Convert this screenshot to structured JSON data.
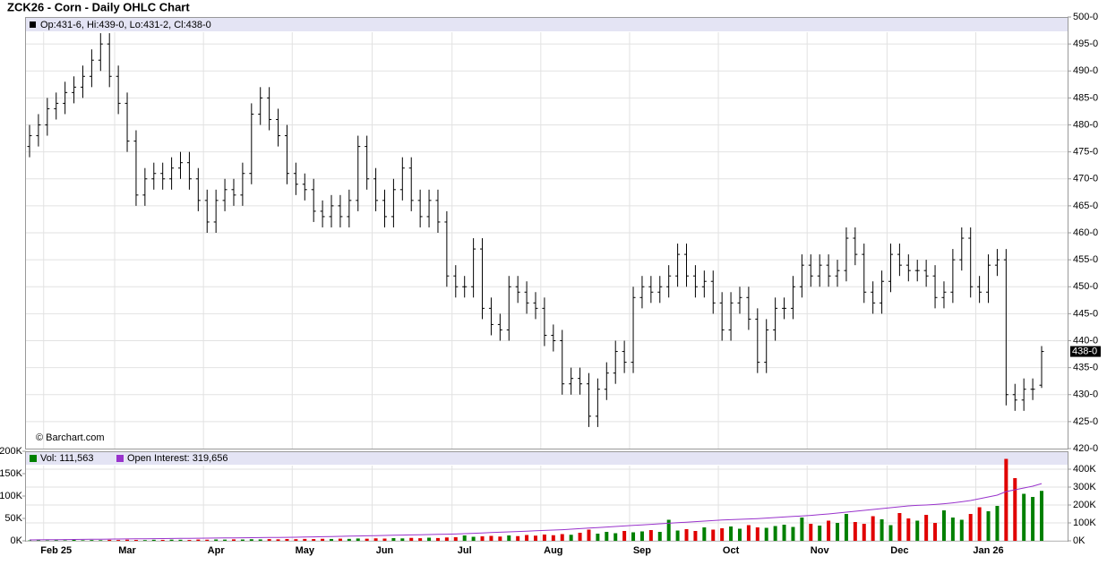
{
  "chart_data": [
    {
      "type": "ohlc",
      "title": "ZCK26 - Corn - Daily OHLC Chart",
      "annotation": "Op:431-6, Hi:439-0, Lo:431-2, Cl:438-0",
      "source": "© Barchart.com",
      "last_label": "438-0",
      "color": "#000000",
      "grid": true,
      "open": [
        476,
        478,
        480,
        483,
        484,
        486,
        487,
        489,
        492,
        495,
        489,
        484,
        477,
        467,
        470,
        471,
        470,
        472,
        473,
        470,
        466,
        462,
        466,
        468,
        467,
        471,
        482,
        485,
        481,
        478,
        471,
        469,
        468,
        464,
        463,
        465,
        463,
        466,
        476,
        470,
        466,
        463,
        468,
        472,
        466,
        463,
        466,
        462,
        452,
        450,
        450,
        457,
        446,
        443,
        442,
        450,
        449,
        447,
        446,
        441,
        440,
        432,
        433,
        432,
        426,
        431,
        434,
        438,
        436,
        448,
        450,
        449,
        450,
        452,
        456,
        452,
        450,
        451,
        447,
        442,
        447,
        448,
        444,
        436,
        442,
        446,
        446,
        450,
        454,
        452,
        454,
        452,
        453,
        459,
        456,
        449,
        447,
        451,
        456,
        454,
        453,
        453,
        452,
        448,
        449,
        455,
        459,
        450,
        449,
        454,
        455,
        430,
        429,
        431,
        431.75
      ],
      "high": [
        480,
        482,
        485,
        486,
        488,
        489,
        491,
        494,
        497,
        497,
        491,
        486,
        479,
        472,
        473,
        473,
        474,
        475,
        475,
        472,
        468,
        468,
        470,
        470,
        473,
        484,
        487,
        487,
        483,
        480,
        473,
        471,
        470,
        466,
        467,
        467,
        468,
        478,
        478,
        472,
        468,
        470,
        474,
        474,
        468,
        468,
        468,
        464,
        454,
        452,
        459,
        459,
        448,
        445,
        452,
        452,
        451,
        449,
        448,
        443,
        442,
        435,
        435,
        434,
        433,
        436,
        440,
        440,
        450,
        452,
        452,
        452,
        454,
        458,
        458,
        454,
        453,
        453,
        449,
        449,
        450,
        450,
        446,
        444,
        448,
        448,
        452,
        456,
        456,
        456,
        456,
        455,
        461,
        461,
        458,
        451,
        453,
        458,
        458,
        456,
        455,
        455,
        454,
        451,
        457,
        461,
        461,
        452,
        456,
        457,
        457,
        432,
        433,
        433,
        439
      ],
      "low": [
        474,
        476,
        478,
        481,
        482,
        484,
        485,
        487,
        490,
        487,
        482,
        475,
        465,
        465,
        468,
        468,
        468,
        470,
        468,
        464,
        460,
        460,
        464,
        465,
        465,
        469,
        480,
        479,
        476,
        469,
        467,
        466,
        462,
        461,
        461,
        461,
        461,
        464,
        468,
        464,
        461,
        461,
        466,
        464,
        461,
        461,
        460,
        450,
        448,
        448,
        448,
        444,
        441,
        440,
        440,
        447,
        445,
        444,
        439,
        438,
        430,
        430,
        430,
        424,
        424,
        429,
        432,
        434,
        434,
        446,
        447,
        447,
        448,
        450,
        450,
        448,
        448,
        445,
        440,
        440,
        445,
        442,
        434,
        434,
        440,
        444,
        444,
        448,
        450,
        450,
        450,
        450,
        451,
        454,
        447,
        445,
        445,
        449,
        452,
        451,
        451,
        450,
        446,
        446,
        447,
        453,
        448,
        447,
        447,
        452,
        428,
        427,
        427,
        429,
        431.25
      ],
      "close": [
        478,
        480,
        483,
        484,
        486,
        487,
        489,
        492,
        495,
        489,
        484,
        477,
        467,
        470,
        471,
        470,
        472,
        473,
        470,
        466,
        462,
        466,
        468,
        467,
        471,
        482,
        485,
        481,
        478,
        471,
        469,
        468,
        464,
        463,
        465,
        463,
        466,
        476,
        470,
        466,
        463,
        468,
        472,
        466,
        463,
        466,
        462,
        452,
        450,
        450,
        457,
        446,
        443,
        442,
        450,
        449,
        447,
        446,
        441,
        440,
        432,
        433,
        432,
        426,
        431,
        434,
        438,
        436,
        448,
        450,
        449,
        450,
        452,
        456,
        452,
        450,
        451,
        447,
        442,
        447,
        448,
        444,
        436,
        442,
        446,
        446,
        450,
        454,
        452,
        454,
        452,
        453,
        459,
        456,
        449,
        447,
        451,
        456,
        454,
        453,
        453,
        452,
        448,
        449,
        455,
        459,
        450,
        449,
        454,
        455,
        430,
        429,
        431,
        431,
        438
      ],
      "ylim": [
        420,
        500
      ],
      "yticks": [
        {
          "value": 420,
          "label": "420-0"
        },
        {
          "value": 425,
          "label": "425-0"
        },
        {
          "value": 430,
          "label": "430-0"
        },
        {
          "value": 435,
          "label": "435-0"
        },
        {
          "value": 440,
          "label": "440-0"
        },
        {
          "value": 445,
          "label": "445-0"
        },
        {
          "value": 450,
          "label": "450-0"
        },
        {
          "value": 455,
          "label": "455-0"
        },
        {
          "value": 460,
          "label": "460-0"
        },
        {
          "value": 465,
          "label": "465-0"
        },
        {
          "value": 470,
          "label": "470-0"
        },
        {
          "value": 475,
          "label": "475-0"
        },
        {
          "value": 480,
          "label": "480-0"
        },
        {
          "value": 485,
          "label": "485-0"
        },
        {
          "value": 490,
          "label": "490-0"
        },
        {
          "value": 495,
          "label": "495-0"
        },
        {
          "value": 500,
          "label": "500-0"
        }
      ]
    },
    {
      "type": "bar",
      "down_color": "#e00000",
      "categories": [
        null,
        null,
        null,
        "Feb 25",
        null,
        null,
        null,
        null,
        null,
        null,
        null,
        "Mar",
        null,
        null,
        null,
        null,
        null,
        null,
        null,
        null,
        null,
        "Apr",
        null,
        null,
        null,
        null,
        null,
        null,
        null,
        null,
        null,
        "May",
        null,
        null,
        null,
        null,
        null,
        null,
        null,
        null,
        "Jun",
        null,
        null,
        null,
        null,
        null,
        null,
        null,
        null,
        "Jul",
        null,
        null,
        null,
        null,
        null,
        null,
        null,
        null,
        null,
        "Aug",
        null,
        null,
        null,
        null,
        null,
        null,
        null,
        null,
        null,
        "Sep",
        null,
        null,
        null,
        null,
        null,
        null,
        null,
        null,
        null,
        "Oct",
        null,
        null,
        null,
        null,
        null,
        null,
        null,
        null,
        null,
        "Nov",
        null,
        null,
        null,
        null,
        null,
        null,
        null,
        null,
        "Dec",
        null,
        null,
        null,
        null,
        null,
        null,
        null,
        null,
        null,
        "Jan 26",
        null,
        null,
        null,
        null,
        null,
        null
      ],
      "series": [
        {
          "name": "Vol: 111,563",
          "color": "#008000",
          "values": [
            800,
            1200,
            900,
            1500,
            1100,
            2000,
            1300,
            1700,
            1400,
            2200,
            1800,
            2500,
            2000,
            1600,
            2300,
            2100,
            2600,
            2400,
            1900,
            2800,
            2500,
            3000,
            2700,
            3200,
            2900,
            3500,
            3100,
            3800,
            3300,
            4000,
            3600,
            4200,
            3900,
            4500,
            4100,
            4800,
            4300,
            5200,
            4700,
            5500,
            5000,
            6000,
            5400,
            6500,
            5800,
            7000,
            6200,
            7500,
            8000,
            12000,
            9000,
            10000,
            11000,
            9500,
            12000,
            10500,
            13000,
            11500,
            14000,
            12500,
            15000,
            13500,
            18000,
            25000,
            16000,
            20000,
            17000,
            22000,
            19000,
            21000,
            24000,
            20000,
            47000,
            23000,
            26000,
            22000,
            30000,
            25000,
            28000,
            32000,
            27000,
            35000,
            30000,
            29000,
            33000,
            36000,
            31000,
            52000,
            38000,
            34000,
            45000,
            40000,
            60000,
            42000,
            38000,
            55000,
            48000,
            35000,
            62000,
            50000,
            45000,
            58000,
            40000,
            68000,
            52000,
            47000,
            60000,
            75000,
            66000,
            78000,
            183000,
            140000,
            105000,
            98000,
            111563
          ]
        },
        {
          "name": "Open Interest: 319,656",
          "type": "line",
          "axis": "y2",
          "color": "#9933cc",
          "values": [
            5000,
            5500,
            6000,
            6500,
            7000,
            7500,
            8000,
            8500,
            9000,
            9500,
            10000,
            10500,
            11000,
            11500,
            12000,
            12500,
            13000,
            13500,
            14000,
            14500,
            15000,
            15500,
            16000,
            16500,
            17000,
            17500,
            18000,
            18500,
            19000,
            19500,
            20000,
            21000,
            22000,
            23000,
            24000,
            25000,
            26000,
            27000,
            28000,
            29000,
            30000,
            31000,
            32000,
            33000,
            34000,
            35000,
            36000,
            37000,
            38000,
            40000,
            42000,
            44000,
            46000,
            48000,
            50000,
            52000,
            54000,
            56000,
            58000,
            60000,
            62000,
            65000,
            68000,
            71000,
            74000,
            77000,
            80000,
            83000,
            86000,
            89000,
            92000,
            95000,
            98000,
            101000,
            104000,
            107000,
            110000,
            113000,
            116000,
            118000,
            120000,
            122000,
            124000,
            127000,
            130000,
            133000,
            136000,
            139000,
            142000,
            146000,
            150000,
            155000,
            160000,
            165000,
            170000,
            175000,
            180000,
            185000,
            190000,
            195000,
            198000,
            200000,
            203000,
            207000,
            212000,
            218000,
            225000,
            235000,
            245000,
            255000,
            275000,
            285000,
            295000,
            305000,
            319656
          ]
        }
      ],
      "ylim": [
        0,
        200000
      ],
      "yticks": [
        {
          "value": 0,
          "label": "0K"
        },
        {
          "value": 50000,
          "label": "50K"
        },
        {
          "value": 100000,
          "label": "100K"
        },
        {
          "value": 150000,
          "label": "150K"
        },
        {
          "value": 200000,
          "label": "200K"
        }
      ],
      "y2lim": [
        0,
        500000
      ],
      "y2ticks": [
        {
          "value": 0,
          "label": "0K"
        },
        {
          "value": 100000,
          "label": "100K"
        },
        {
          "value": 200000,
          "label": "200K"
        },
        {
          "value": 300000,
          "label": "300K"
        },
        {
          "value": 400000,
          "label": "400K"
        }
      ]
    }
  ]
}
